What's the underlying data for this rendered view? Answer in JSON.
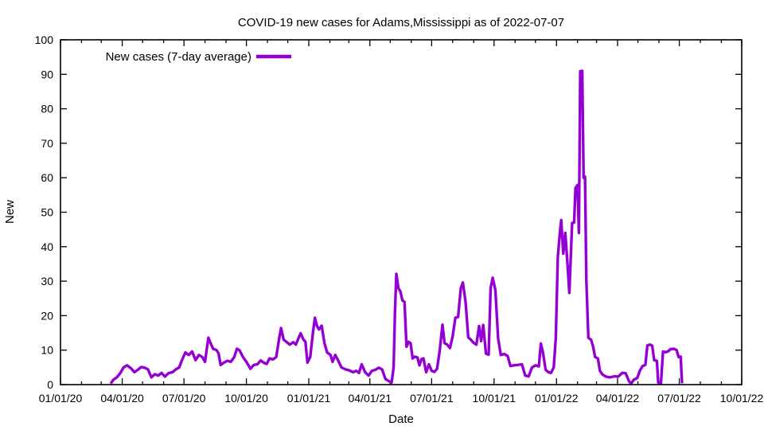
{
  "title": "COVID-19 new cases for Adams,Mississippi as of 2022-07-07",
  "legend": {
    "label": "New cases (7-day average)",
    "position": "top-left-inside"
  },
  "axes": {
    "x": {
      "label": "Date",
      "start": "2020-01-01",
      "end": "2022-10-01",
      "major_tick_labels": [
        "01/01/20",
        "04/01/20",
        "07/01/20",
        "10/01/20",
        "01/01/21",
        "04/01/21",
        "07/01/21",
        "10/01/21",
        "01/01/22",
        "04/01/22",
        "07/01/22",
        "10/01/22"
      ],
      "minor_tick_unit": "month"
    },
    "y": {
      "label": "New",
      "min": 0,
      "max": 100,
      "tick_step": 10,
      "tick_labels": [
        "0",
        "10",
        "20",
        "30",
        "40",
        "50",
        "60",
        "70",
        "80",
        "90",
        "100"
      ]
    }
  },
  "chart_data": {
    "type": "line",
    "title": "COVID-19 new cases for Adams,Mississippi as of 2022-07-07",
    "xlabel": "Date",
    "ylabel": "New",
    "xlim": [
      "2020-01-01",
      "2022-10-01"
    ],
    "ylim": [
      0,
      100
    ],
    "grid": false,
    "legend_position": "top-left-inside",
    "line_color": "#9400D3",
    "series": [
      {
        "name": "New cases (7-day average)",
        "color": "#9400D3",
        "points": [
          [
            "2020-03-15",
            0.3
          ],
          [
            "2020-03-19",
            1.4
          ],
          [
            "2020-03-24",
            2.1
          ],
          [
            "2020-03-29",
            3.3
          ],
          [
            "2020-04-03",
            5.0
          ],
          [
            "2020-04-08",
            5.6
          ],
          [
            "2020-04-14",
            4.7
          ],
          [
            "2020-04-19",
            3.6
          ],
          [
            "2020-04-24",
            4.3
          ],
          [
            "2020-04-29",
            5.1
          ],
          [
            "2020-05-04",
            4.9
          ],
          [
            "2020-05-09",
            4.4
          ],
          [
            "2020-05-14",
            2.1
          ],
          [
            "2020-05-19",
            3.0
          ],
          [
            "2020-05-24",
            2.6
          ],
          [
            "2020-05-29",
            3.4
          ],
          [
            "2020-06-03",
            2.3
          ],
          [
            "2020-06-08",
            3.3
          ],
          [
            "2020-06-14",
            3.6
          ],
          [
            "2020-06-19",
            4.4
          ],
          [
            "2020-06-24",
            5.0
          ],
          [
            "2020-06-28",
            7.1
          ],
          [
            "2020-07-03",
            9.3
          ],
          [
            "2020-07-08",
            8.6
          ],
          [
            "2020-07-13",
            9.6
          ],
          [
            "2020-07-18",
            7.1
          ],
          [
            "2020-07-23",
            8.6
          ],
          [
            "2020-07-28",
            8.0
          ],
          [
            "2020-08-01",
            6.6
          ],
          [
            "2020-08-04",
            11.0
          ],
          [
            "2020-08-06",
            13.6
          ],
          [
            "2020-08-09",
            12.1
          ],
          [
            "2020-08-13",
            10.4
          ],
          [
            "2020-08-18",
            10.0
          ],
          [
            "2020-08-21",
            9.0
          ],
          [
            "2020-08-24",
            5.7
          ],
          [
            "2020-08-29",
            6.4
          ],
          [
            "2020-09-03",
            6.9
          ],
          [
            "2020-09-08",
            6.6
          ],
          [
            "2020-09-13",
            8.0
          ],
          [
            "2020-09-17",
            10.4
          ],
          [
            "2020-09-21",
            9.9
          ],
          [
            "2020-09-26",
            8.0
          ],
          [
            "2020-10-01",
            6.6
          ],
          [
            "2020-10-07",
            4.6
          ],
          [
            "2020-10-12",
            5.7
          ],
          [
            "2020-10-17",
            5.9
          ],
          [
            "2020-10-22",
            7.0
          ],
          [
            "2020-10-27",
            6.3
          ],
          [
            "2020-10-31",
            6.0
          ],
          [
            "2020-11-04",
            7.6
          ],
          [
            "2020-11-09",
            7.3
          ],
          [
            "2020-11-14",
            8.0
          ],
          [
            "2020-11-18",
            13.0
          ],
          [
            "2020-11-21",
            16.4
          ],
          [
            "2020-11-25",
            13.0
          ],
          [
            "2020-11-29",
            12.4
          ],
          [
            "2020-12-04",
            11.6
          ],
          [
            "2020-12-09",
            12.3
          ],
          [
            "2020-12-13",
            11.6
          ],
          [
            "2020-12-17",
            13.6
          ],
          [
            "2020-12-20",
            14.9
          ],
          [
            "2020-12-24",
            13.1
          ],
          [
            "2020-12-27",
            12.4
          ],
          [
            "2020-12-30",
            6.4
          ],
          [
            "2021-01-03",
            8.0
          ],
          [
            "2021-01-07",
            15.0
          ],
          [
            "2021-01-10",
            19.4
          ],
          [
            "2021-01-13",
            17.0
          ],
          [
            "2021-01-16",
            16.0
          ],
          [
            "2021-01-20",
            17.1
          ],
          [
            "2021-01-24",
            12.0
          ],
          [
            "2021-01-28",
            9.3
          ],
          [
            "2021-02-02",
            8.6
          ],
          [
            "2021-02-05",
            6.6
          ],
          [
            "2021-02-09",
            8.6
          ],
          [
            "2021-02-13",
            7.1
          ],
          [
            "2021-02-18",
            5.0
          ],
          [
            "2021-02-24",
            4.4
          ],
          [
            "2021-03-02",
            4.1
          ],
          [
            "2021-03-07",
            3.6
          ],
          [
            "2021-03-12",
            4.0
          ],
          [
            "2021-03-16",
            3.4
          ],
          [
            "2021-03-20",
            5.9
          ],
          [
            "2021-03-25",
            3.6
          ],
          [
            "2021-03-30",
            2.6
          ],
          [
            "2021-04-04",
            4.0
          ],
          [
            "2021-04-09",
            4.3
          ],
          [
            "2021-04-14",
            4.9
          ],
          [
            "2021-04-19",
            4.4
          ],
          [
            "2021-04-24",
            1.6
          ],
          [
            "2021-04-29",
            1.0
          ],
          [
            "2021-05-03",
            0.6
          ],
          [
            "2021-05-06",
            5.0
          ],
          [
            "2021-05-08",
            21.0
          ],
          [
            "2021-05-10",
            32.1
          ],
          [
            "2021-05-13",
            28.0
          ],
          [
            "2021-05-16",
            27.0
          ],
          [
            "2021-05-19",
            24.4
          ],
          [
            "2021-05-22",
            24.0
          ],
          [
            "2021-05-25",
            11.0
          ],
          [
            "2021-05-28",
            12.4
          ],
          [
            "2021-05-31",
            12.0
          ],
          [
            "2021-06-03",
            7.6
          ],
          [
            "2021-06-06",
            8.1
          ],
          [
            "2021-06-10",
            7.9
          ],
          [
            "2021-06-13",
            5.6
          ],
          [
            "2021-06-16",
            7.4
          ],
          [
            "2021-06-19",
            7.6
          ],
          [
            "2021-06-23",
            3.6
          ],
          [
            "2021-06-27",
            5.9
          ],
          [
            "2021-07-01",
            4.0
          ],
          [
            "2021-07-05",
            3.7
          ],
          [
            "2021-07-09",
            4.6
          ],
          [
            "2021-07-13",
            10.0
          ],
          [
            "2021-07-17",
            17.4
          ],
          [
            "2021-07-20",
            12.0
          ],
          [
            "2021-07-24",
            11.6
          ],
          [
            "2021-07-28",
            10.6
          ],
          [
            "2021-08-01",
            14.0
          ],
          [
            "2021-08-05",
            19.4
          ],
          [
            "2021-08-09",
            19.6
          ],
          [
            "2021-08-13",
            27.9
          ],
          [
            "2021-08-16",
            29.6
          ],
          [
            "2021-08-20",
            24.0
          ],
          [
            "2021-08-24",
            13.7
          ],
          [
            "2021-08-28",
            13.0
          ],
          [
            "2021-09-01",
            12.1
          ],
          [
            "2021-09-05",
            11.6
          ],
          [
            "2021-09-09",
            17.0
          ],
          [
            "2021-09-12",
            12.6
          ],
          [
            "2021-09-15",
            17.3
          ],
          [
            "2021-09-19",
            9.0
          ],
          [
            "2021-09-23",
            8.7
          ],
          [
            "2021-09-26",
            28.0
          ],
          [
            "2021-09-29",
            31.0
          ],
          [
            "2021-10-03",
            27.4
          ],
          [
            "2021-10-07",
            13.4
          ],
          [
            "2021-10-11",
            8.6
          ],
          [
            "2021-10-16",
            8.9
          ],
          [
            "2021-10-21",
            8.3
          ],
          [
            "2021-10-25",
            5.4
          ],
          [
            "2021-10-30",
            5.6
          ],
          [
            "2021-11-05",
            5.7
          ],
          [
            "2021-11-11",
            5.9
          ],
          [
            "2021-11-16",
            2.6
          ],
          [
            "2021-11-21",
            2.4
          ],
          [
            "2021-11-26",
            5.0
          ],
          [
            "2021-12-01",
            5.6
          ],
          [
            "2021-12-06",
            5.3
          ],
          [
            "2021-12-09",
            11.9
          ],
          [
            "2021-12-12",
            9.4
          ],
          [
            "2021-12-16",
            4.3
          ],
          [
            "2021-12-20",
            3.6
          ],
          [
            "2021-12-24",
            3.4
          ],
          [
            "2021-12-28",
            5.0
          ],
          [
            "2021-12-31",
            13.6
          ],
          [
            "2022-01-03",
            37.0
          ],
          [
            "2022-01-06",
            44.0
          ],
          [
            "2022-01-08",
            47.7
          ],
          [
            "2022-01-11",
            38.0
          ],
          [
            "2022-01-14",
            44.0
          ],
          [
            "2022-01-17",
            35.6
          ],
          [
            "2022-01-20",
            26.6
          ],
          [
            "2022-01-24",
            46.9
          ],
          [
            "2022-01-27",
            47.0
          ],
          [
            "2022-01-29",
            57.0
          ],
          [
            "2022-02-01",
            57.9
          ],
          [
            "2022-02-03",
            44.0
          ],
          [
            "2022-02-05",
            90.9
          ],
          [
            "2022-02-08",
            91.0
          ],
          [
            "2022-02-10",
            60.0
          ],
          [
            "2022-02-12",
            60.3
          ],
          [
            "2022-02-14",
            30.0
          ],
          [
            "2022-02-17",
            13.6
          ],
          [
            "2022-02-21",
            13.0
          ],
          [
            "2022-02-24",
            11.0
          ],
          [
            "2022-02-27",
            8.0
          ],
          [
            "2022-03-03",
            7.6
          ],
          [
            "2022-03-06",
            4.0
          ],
          [
            "2022-03-10",
            2.9
          ],
          [
            "2022-03-15",
            2.3
          ],
          [
            "2022-03-21",
            2.1
          ],
          [
            "2022-03-27",
            2.4
          ],
          [
            "2022-04-02",
            2.3
          ],
          [
            "2022-04-08",
            3.4
          ],
          [
            "2022-04-13",
            3.3
          ],
          [
            "2022-04-18",
            0.9
          ],
          [
            "2022-04-21",
            0.3
          ],
          [
            "2022-04-25",
            1.4
          ],
          [
            "2022-04-30",
            1.9
          ],
          [
            "2022-05-04",
            4.1
          ],
          [
            "2022-05-08",
            5.4
          ],
          [
            "2022-05-12",
            5.7
          ],
          [
            "2022-05-15",
            11.4
          ],
          [
            "2022-05-19",
            11.6
          ],
          [
            "2022-05-22",
            11.3
          ],
          [
            "2022-05-25",
            7.1
          ],
          [
            "2022-05-29",
            6.9
          ],
          [
            "2022-05-31",
            0.6
          ],
          [
            "2022-06-04",
            0.4
          ],
          [
            "2022-06-07",
            9.6
          ],
          [
            "2022-06-11",
            9.4
          ],
          [
            "2022-06-15",
            9.7
          ],
          [
            "2022-06-18",
            10.3
          ],
          [
            "2022-06-23",
            10.4
          ],
          [
            "2022-06-27",
            10.0
          ],
          [
            "2022-06-30",
            8.0
          ],
          [
            "2022-07-03",
            8.1
          ],
          [
            "2022-07-05",
            0.4
          ]
        ]
      }
    ]
  }
}
